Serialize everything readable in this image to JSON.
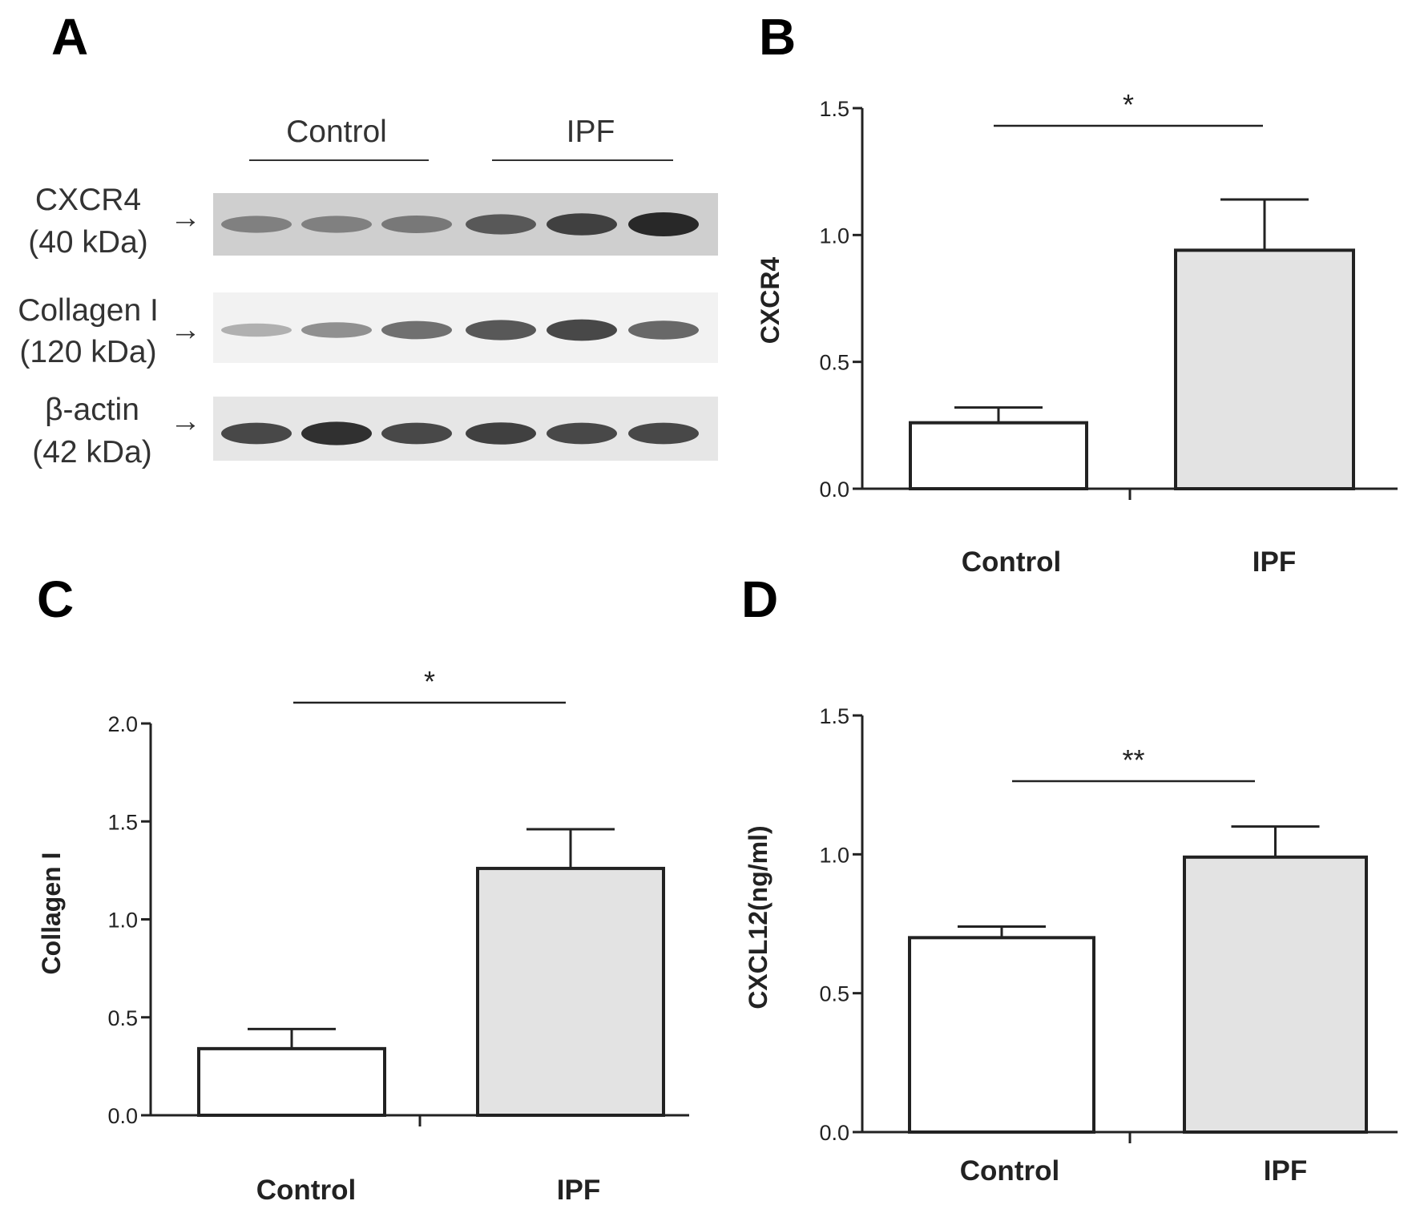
{
  "panels": {
    "a": "A",
    "b": "B",
    "c": "C",
    "d": "D"
  },
  "blot": {
    "groups": [
      "Control",
      "IPF"
    ],
    "rows": [
      {
        "label": "CXCR4",
        "size": "(40 kDa)",
        "intensities": [
          0.45,
          0.45,
          0.5,
          0.7,
          0.85,
          1.0
        ]
      },
      {
        "label": "Collagen I",
        "size": "(120 kDa)",
        "intensities": [
          0.15,
          0.35,
          0.55,
          0.7,
          0.8,
          0.6
        ]
      },
      {
        "label": "β-actin",
        "size": "(42 kDa)",
        "intensities": [
          0.8,
          0.95,
          0.8,
          0.85,
          0.8,
          0.8
        ]
      }
    ],
    "arrow": "→"
  },
  "chart_data": [
    {
      "type": "bar",
      "categories": [
        "Control",
        "IPF"
      ],
      "values": [
        0.26,
        0.94
      ],
      "errors": [
        0.06,
        0.2
      ],
      "ylabel": "CXCR4",
      "ylim": [
        0,
        1.5
      ],
      "yticks": [
        "0.0",
        "0.5",
        "1.0",
        "1.5"
      ],
      "significance": "*",
      "bar_colors": [
        "#ffffff",
        "#e3e3e3"
      ]
    },
    {
      "type": "bar",
      "categories": [
        "Control",
        "IPF"
      ],
      "values": [
        0.34,
        1.26
      ],
      "errors": [
        0.1,
        0.2
      ],
      "ylabel": "Collagen I",
      "ylim": [
        0,
        2.0
      ],
      "yticks": [
        "0.0",
        "0.5",
        "1.0",
        "1.5",
        "2.0"
      ],
      "significance": "*",
      "bar_colors": [
        "#ffffff",
        "#e3e3e3"
      ]
    },
    {
      "type": "bar",
      "categories": [
        "Control",
        "IPF"
      ],
      "values": [
        0.7,
        0.99
      ],
      "errors": [
        0.04,
        0.11
      ],
      "ylabel": "CXCL12(ng/ml)",
      "ylim": [
        0,
        1.5
      ],
      "yticks": [
        "0.0",
        "0.5",
        "1.0",
        "1.5"
      ],
      "significance": "**",
      "bar_colors": [
        "#ffffff",
        "#e3e3e3"
      ]
    }
  ]
}
